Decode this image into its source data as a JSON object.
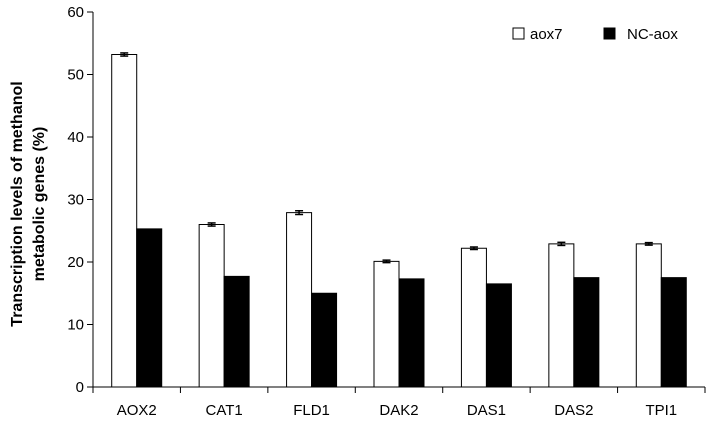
{
  "chart_data": {
    "type": "bar",
    "title": "",
    "xlabel": "",
    "ylabel_lines": [
      "Transcription levels  of methanol",
      "metabolic genes (%)"
    ],
    "ylim": [
      0,
      60
    ],
    "yticks": [
      0,
      10,
      20,
      30,
      40,
      50,
      60
    ],
    "ytick_labels": [
      "0",
      "10",
      "20",
      "30",
      "40",
      "50",
      "60"
    ],
    "categories": [
      "AOX2",
      "CAT1",
      "FLD1",
      "DAK2",
      "DAS1",
      "DAS2",
      "TPI1"
    ],
    "series": [
      {
        "name": "aox7",
        "fill": "#ffffff",
        "stroke": "#000000",
        "values": [
          53.2,
          26.0,
          27.9,
          20.1,
          22.2,
          22.9,
          22.9
        ],
        "errors": [
          0.25,
          0.25,
          0.3,
          0.2,
          0.2,
          0.25,
          0.2
        ]
      },
      {
        "name": "NC-aox",
        "fill": "#000000",
        "stroke": "#000000",
        "values": [
          25.3,
          17.7,
          15.0,
          17.3,
          16.5,
          17.5,
          17.5
        ],
        "errors": [
          0,
          0,
          0,
          0,
          0,
          0,
          0
        ]
      }
    ],
    "legend_position": "top-right",
    "grid": false
  }
}
